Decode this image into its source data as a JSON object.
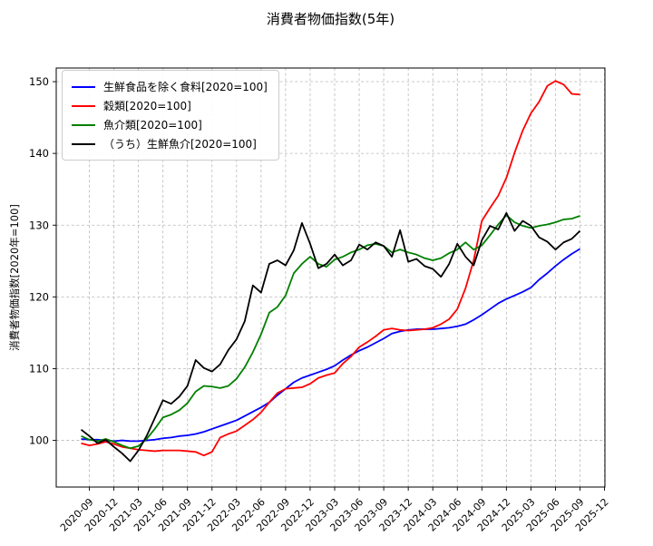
{
  "chart_data": {
    "type": "line",
    "title": "消費者物価指数(5年)",
    "ylabel": "消費者物価指数[2020年=100]",
    "grid": true,
    "legend_position": "upper left",
    "x_origin": "2020-08",
    "xlim_month_offsets": [
      -3.05,
      64.05
    ],
    "ylim": [
      93.5,
      151.9
    ],
    "y_ticks": [
      100,
      110,
      120,
      130,
      140,
      150
    ],
    "x_tick_labels": [
      "2020-09",
      "2020-12",
      "2021-03",
      "2021-06",
      "2021-09",
      "2021-12",
      "2022-03",
      "2022-06",
      "2022-09",
      "2022-12",
      "2023-03",
      "2023-06",
      "2023-09",
      "2023-12",
      "2024-03",
      "2024-06",
      "2024-09",
      "2024-12",
      "2025-03",
      "2025-06",
      "2025-09",
      "2025-12"
    ],
    "x": [
      "2020-08",
      "2020-09",
      "2020-10",
      "2020-11",
      "2020-12",
      "2021-01",
      "2021-02",
      "2021-03",
      "2021-04",
      "2021-05",
      "2021-06",
      "2021-07",
      "2021-08",
      "2021-09",
      "2021-10",
      "2021-11",
      "2021-12",
      "2022-01",
      "2022-02",
      "2022-03",
      "2022-04",
      "2022-05",
      "2022-06",
      "2022-07",
      "2022-08",
      "2022-09",
      "2022-10",
      "2022-11",
      "2022-12",
      "2023-01",
      "2023-02",
      "2023-03",
      "2023-04",
      "2023-05",
      "2023-06",
      "2023-07",
      "2023-08",
      "2023-09",
      "2023-10",
      "2023-11",
      "2023-12",
      "2024-01",
      "2024-02",
      "2024-03",
      "2024-04",
      "2024-05",
      "2024-06",
      "2024-07",
      "2024-08",
      "2024-09",
      "2024-10",
      "2024-11",
      "2024-12",
      "2025-01",
      "2025-02",
      "2025-03",
      "2025-04",
      "2025-05",
      "2025-06",
      "2025-07",
      "2025-08",
      "2025-09"
    ],
    "series": [
      {
        "key": "food-excluding-fresh",
        "name": "生鮮食品を除く食料[2020=100]",
        "color": "#0000ff",
        "values": [
          100.2,
          100.1,
          100.1,
          100.0,
          99.9,
          100.0,
          99.9,
          99.9,
          100.0,
          100.1,
          100.3,
          100.4,
          100.6,
          100.7,
          100.9,
          101.2,
          101.6,
          102.0,
          102.4,
          102.8,
          103.4,
          104.0,
          104.6,
          105.3,
          106.3,
          107.2,
          108.1,
          108.7,
          109.1,
          109.5,
          109.9,
          110.4,
          111.2,
          111.9,
          112.5,
          113.0,
          113.6,
          114.2,
          114.9,
          115.2,
          115.4,
          115.5,
          115.5,
          115.5,
          115.6,
          115.7,
          115.9,
          116.2,
          116.8,
          117.5,
          118.3,
          119.1,
          119.7,
          120.2,
          120.7,
          121.3,
          122.4,
          123.3,
          124.3,
          125.2,
          126.0,
          126.7
        ]
      },
      {
        "key": "grains",
        "name": "穀類[2020=100]",
        "color": "#ff0000",
        "values": [
          99.6,
          99.3,
          99.5,
          99.8,
          99.5,
          99.1,
          98.9,
          98.7,
          98.6,
          98.5,
          98.6,
          98.6,
          98.6,
          98.5,
          98.4,
          97.9,
          98.4,
          100.4,
          100.9,
          101.3,
          102.1,
          102.9,
          103.9,
          105.3,
          106.6,
          107.2,
          107.3,
          107.4,
          107.9,
          108.7,
          109.1,
          109.4,
          110.7,
          111.7,
          113.0,
          113.7,
          114.5,
          115.4,
          115.6,
          115.4,
          115.3,
          115.4,
          115.5,
          115.7,
          116.2,
          116.9,
          118.3,
          121.2,
          125.1,
          130.6,
          132.4,
          134.1,
          136.6,
          140.1,
          143.2,
          145.6,
          147.2,
          149.4,
          150.1,
          149.6,
          148.3,
          148.2
        ]
      },
      {
        "key": "fish-seafood",
        "name": "魚介類[2020=100]",
        "color": "#008000",
        "values": [
          100.6,
          100.1,
          99.9,
          100.2,
          99.8,
          99.3,
          98.9,
          99.2,
          100.2,
          101.6,
          103.2,
          103.6,
          104.2,
          105.2,
          106.8,
          107.6,
          107.5,
          107.3,
          107.6,
          108.6,
          110.2,
          112.3,
          114.8,
          117.8,
          118.6,
          120.2,
          123.3,
          124.6,
          125.6,
          124.6,
          124.2,
          125.2,
          125.6,
          126.2,
          126.6,
          127.2,
          127.4,
          127.1,
          126.2,
          126.6,
          126.2,
          125.9,
          125.4,
          125.1,
          125.4,
          126.1,
          126.6,
          127.6,
          126.6,
          127.2,
          128.6,
          130.1,
          131.4,
          130.4,
          129.9,
          129.6,
          129.9,
          130.1,
          130.4,
          130.8,
          130.9,
          131.3
        ]
      },
      {
        "key": "fresh-fish",
        "name": "（うち）生鮮魚介[2020=100]",
        "color": "#000000",
        "values": [
          101.5,
          100.6,
          99.6,
          100.1,
          99.1,
          98.2,
          97.1,
          98.6,
          100.6,
          103.1,
          105.6,
          105.1,
          106.1,
          107.6,
          111.2,
          110.1,
          109.6,
          110.6,
          112.6,
          114.1,
          116.6,
          121.6,
          120.6,
          124.6,
          125.1,
          124.4,
          126.5,
          130.3,
          127.4,
          124.0,
          124.6,
          125.9,
          124.4,
          125.1,
          127.3,
          126.6,
          127.6,
          127.1,
          125.6,
          129.3,
          124.9,
          125.3,
          124.3,
          123.9,
          122.8,
          124.6,
          127.4,
          125.6,
          124.4,
          127.9,
          129.9,
          129.4,
          131.7,
          129.2,
          130.6,
          129.9,
          128.3,
          127.7,
          126.6,
          127.6,
          128.1,
          129.2
        ]
      }
    ]
  }
}
